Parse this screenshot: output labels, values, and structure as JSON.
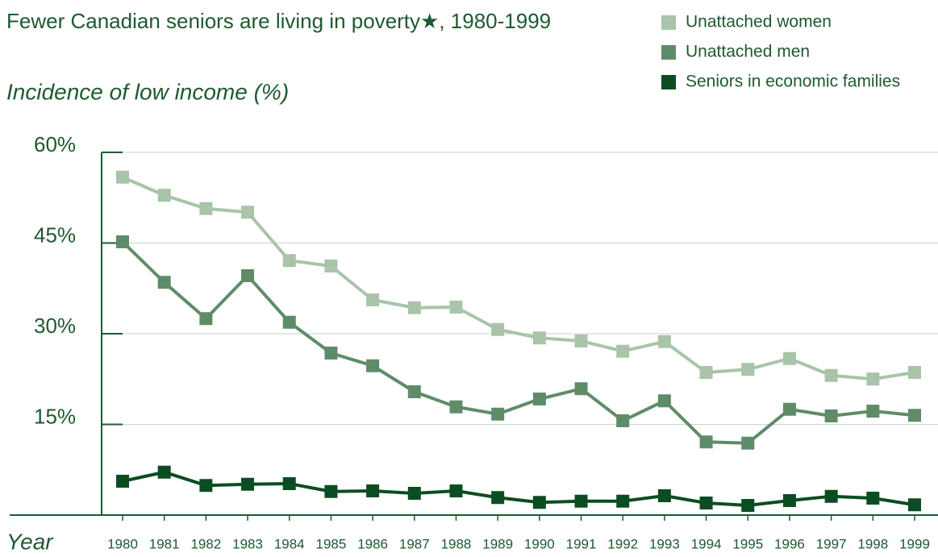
{
  "chart_data": {
    "type": "line",
    "title": "Fewer Canadian seniors are living in poverty★, 1980-1999",
    "y_label": "Incidence of low income (%)",
    "x_label": "Year",
    "categories": [
      "1980",
      "1981",
      "1982",
      "1983",
      "1984",
      "1985",
      "1986",
      "1987",
      "1988",
      "1989",
      "1990",
      "1991",
      "1992",
      "1993",
      "1994",
      "1995",
      "1996",
      "1997",
      "1998",
      "1999"
    ],
    "series": [
      {
        "name": "Unattached women",
        "color": "#a9c4a9",
        "values": [
          55.9,
          52.9,
          50.7,
          50.1,
          42.1,
          41.2,
          35.6,
          34.3,
          34.4,
          30.7,
          29.3,
          28.8,
          27.1,
          28.7,
          23.6,
          24.1,
          25.9,
          23.1,
          22.5,
          23.6
        ]
      },
      {
        "name": "Unattached men",
        "color": "#5f8c68",
        "values": [
          45.2,
          38.5,
          32.5,
          39.6,
          31.9,
          26.8,
          24.7,
          20.4,
          17.9,
          16.7,
          19.2,
          20.9,
          15.6,
          18.9,
          12.1,
          11.9,
          17.5,
          16.4,
          17.2,
          16.5
        ]
      },
      {
        "name": "Seniors in economic families",
        "color": "#0b4d22",
        "values": [
          5.6,
          7.1,
          4.9,
          5.1,
          5.2,
          3.9,
          4.0,
          3.6,
          4.0,
          2.9,
          2.1,
          2.3,
          2.3,
          3.2,
          2.0,
          1.6,
          2.4,
          3.1,
          2.8,
          1.7
        ]
      }
    ],
    "ylim": [
      0,
      60
    ],
    "yticks": [
      {
        "value": 15,
        "label": "15%"
      },
      {
        "value": 30,
        "label": "30%"
      },
      {
        "value": 45,
        "label": "45%"
      },
      {
        "value": 60,
        "label": "60%"
      }
    ],
    "grid": true,
    "legend": "top-right"
  }
}
